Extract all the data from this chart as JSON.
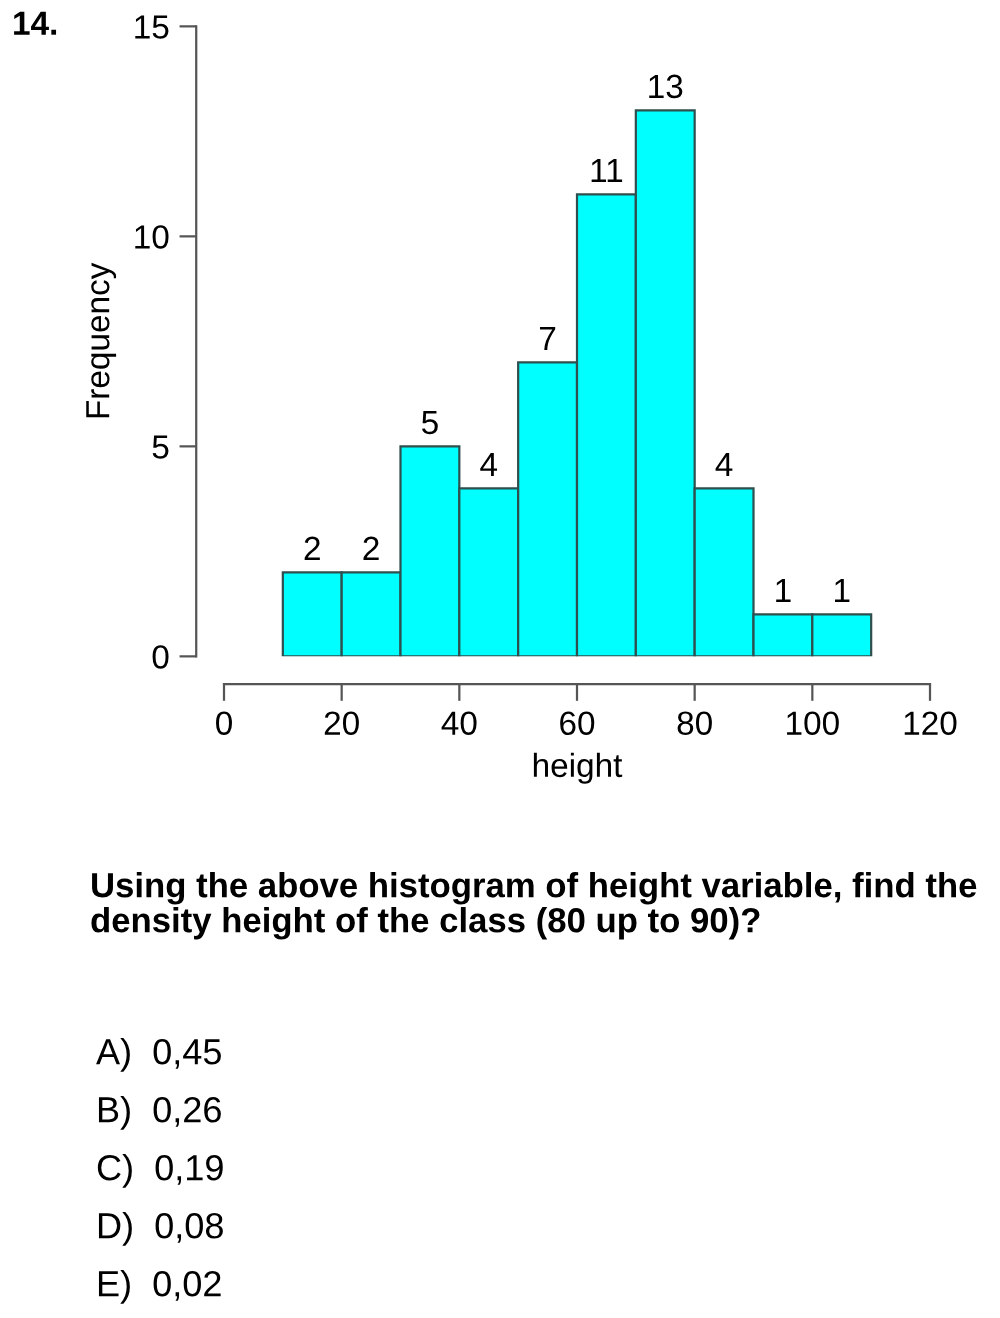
{
  "chart_data": {
    "type": "histogram",
    "title": "14.",
    "xlabel": "height",
    "ylabel": "Frequency",
    "bins": [
      10,
      20,
      30,
      40,
      50,
      60,
      70,
      80,
      90,
      100,
      110
    ],
    "values": [
      2,
      2,
      5,
      4,
      7,
      11,
      13,
      4,
      1,
      1
    ],
    "color": "#00ffff",
    "xlim": [
      0,
      120
    ],
    "xticks": [
      0,
      20,
      40,
      60,
      80,
      100,
      120
    ],
    "ylim": [
      0,
      15
    ],
    "yticks": [
      0,
      5,
      10,
      15
    ],
    "data_labels": true,
    "annotations": [
      "Using the above histogram of height variable, find the density height of the class (80 up to 90)?",
      "A)  0,45",
      "B)  0,26",
      "C)  0,19",
      "D)  0,08",
      "E)  0,02"
    ]
  }
}
